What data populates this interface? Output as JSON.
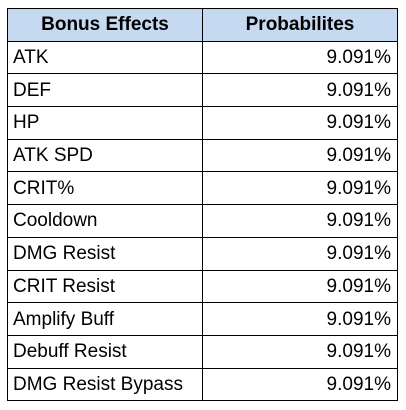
{
  "colors": {
    "header_fill": "#c5d9f1",
    "border": "#000000",
    "text": "#000000"
  },
  "table": {
    "headers": [
      "Bonus Effects",
      "Probabilites"
    ],
    "rows": [
      {
        "effect": "ATK",
        "probability": "9.091%"
      },
      {
        "effect": "DEF",
        "probability": "9.091%"
      },
      {
        "effect": "HP",
        "probability": "9.091%"
      },
      {
        "effect": "ATK SPD",
        "probability": "9.091%"
      },
      {
        "effect": "CRIT%",
        "probability": "9.091%"
      },
      {
        "effect": "Cooldown",
        "probability": "9.091%"
      },
      {
        "effect": "DMG Resist",
        "probability": "9.091%"
      },
      {
        "effect": "CRIT Resist",
        "probability": "9.091%"
      },
      {
        "effect": "Amplify Buff",
        "probability": "9.091%"
      },
      {
        "effect": "Debuff Resist",
        "probability": "9.091%"
      },
      {
        "effect": "DMG Resist Bypass",
        "probability": "9.091%"
      }
    ]
  }
}
